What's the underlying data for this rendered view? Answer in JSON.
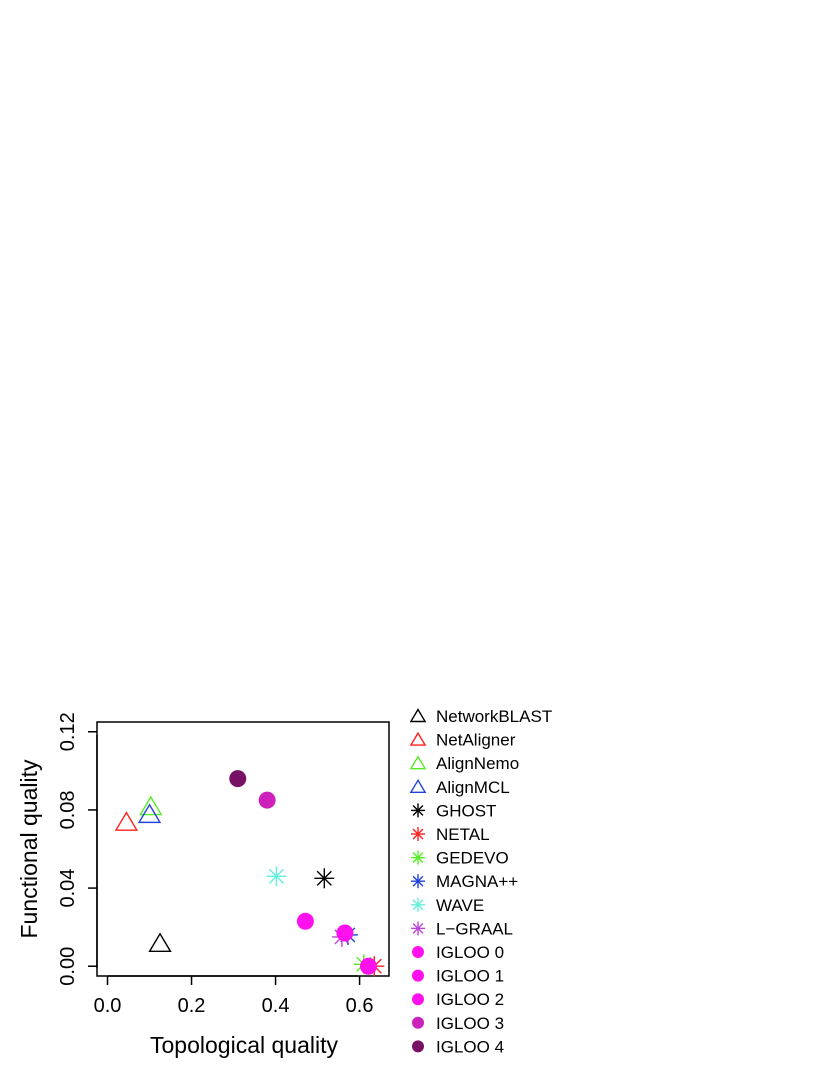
{
  "chart_data": {
    "type": "scatter",
    "title": "",
    "xlabel": "Topological quality",
    "ylabel": "Functional quality",
    "xlim": [
      -0.025,
      0.67
    ],
    "ylim": [
      -0.005,
      0.125
    ],
    "xticks": [
      0.0,
      0.2,
      0.4,
      0.6
    ],
    "xtick_labels": [
      "0.0",
      "0.2",
      "0.4",
      "0.6"
    ],
    "yticks": [
      0.0,
      0.04,
      0.08,
      0.12
    ],
    "ytick_labels": [
      "0.00",
      "0.04",
      "0.08",
      "0.12"
    ],
    "grid": false,
    "legend_position": "right",
    "series": [
      {
        "name": "NetworkBLAST",
        "marker": "triangle",
        "color": "#000000",
        "x": 0.125,
        "y": 0.011
      },
      {
        "name": "NetAligner",
        "marker": "triangle",
        "color": "#ff2020",
        "x": 0.045,
        "y": 0.073
      },
      {
        "name": "AlignNemo",
        "marker": "triangle",
        "color": "#55ee22",
        "x": 0.103,
        "y": 0.081
      },
      {
        "name": "AlignMCL",
        "marker": "triangle",
        "color": "#2244dd",
        "x": 0.1,
        "y": 0.077
      },
      {
        "name": "GHOST",
        "marker": "asterisk",
        "color": "#000000",
        "x": 0.516,
        "y": 0.045
      },
      {
        "name": "NETAL",
        "marker": "asterisk",
        "color": "#ff2020",
        "x": 0.635,
        "y": 0.0
      },
      {
        "name": "GEDEVO",
        "marker": "asterisk",
        "color": "#55ee22",
        "x": 0.61,
        "y": 0.001
      },
      {
        "name": "MAGNA++",
        "marker": "asterisk",
        "color": "#2244dd",
        "x": 0.572,
        "y": 0.016
      },
      {
        "name": "WAVE",
        "marker": "asterisk",
        "color": "#66eedd",
        "x": 0.402,
        "y": 0.046
      },
      {
        "name": "L−GRAAL",
        "marker": "asterisk",
        "color": "#bb44dd",
        "x": 0.558,
        "y": 0.015
      },
      {
        "name": "IGLOO 0",
        "marker": "circle",
        "color": "#ff11ee",
        "x": 0.621,
        "y": 0.0
      },
      {
        "name": "IGLOO 1",
        "marker": "circle",
        "color": "#ff11ee",
        "x": 0.565,
        "y": 0.017
      },
      {
        "name": "IGLOO 2",
        "marker": "circle",
        "color": "#ff11ee",
        "x": 0.471,
        "y": 0.023
      },
      {
        "name": "IGLOO 3",
        "marker": "circle",
        "color": "#cc22bb",
        "x": 0.38,
        "y": 0.085
      },
      {
        "name": "IGLOO 4",
        "marker": "circle",
        "color": "#771166",
        "x": 0.31,
        "y": 0.096
      }
    ]
  }
}
